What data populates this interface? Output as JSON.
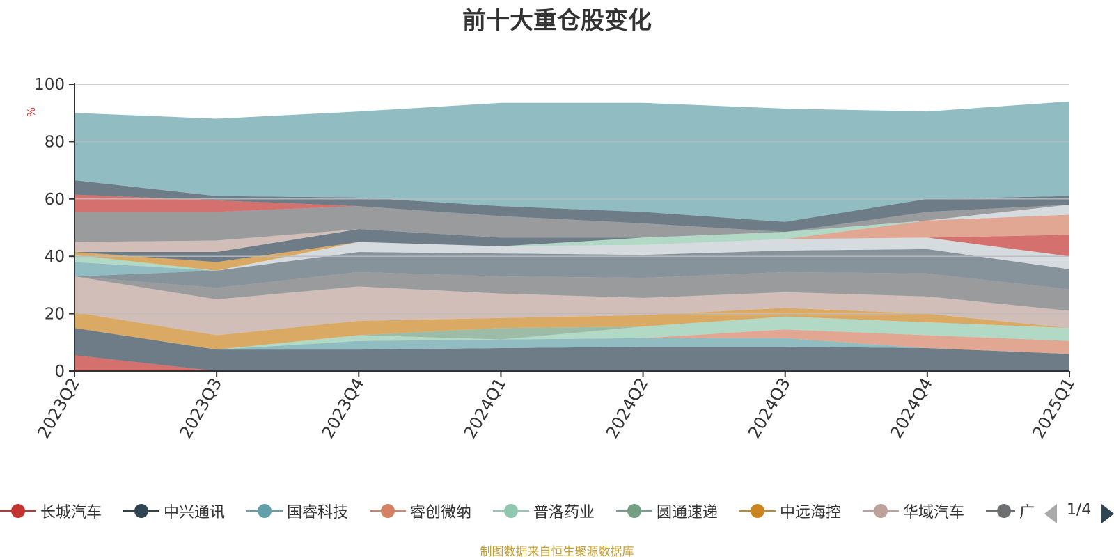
{
  "chart_data": {
    "type": "area",
    "title": "前十大重仓股变化",
    "ylabel": "%",
    "ylim": [
      0,
      100
    ],
    "yticks": [
      0,
      20,
      40,
      60,
      80,
      100
    ],
    "grid": true,
    "stacked": true,
    "categories": [
      "2023Q2",
      "2023Q3",
      "2023Q4",
      "2024Q1",
      "2024Q2",
      "2024Q3",
      "2024Q4",
      "2025Q1"
    ],
    "series": [
      {
        "name": "长城汽车",
        "color": "#c23531",
        "values": [
          5.5,
          0,
          0,
          0,
          0,
          0,
          0,
          0
        ]
      },
      {
        "name": "中兴通讯",
        "color": "#2f4554",
        "values": [
          9.5,
          7.5,
          7.5,
          8,
          8.5,
          8.5,
          8,
          6
        ]
      },
      {
        "name": "国睿科技",
        "color": "#61a0a8",
        "values": [
          0,
          0,
          3,
          3,
          3,
          3,
          0,
          0
        ]
      },
      {
        "name": "睿创微纳",
        "color": "#d48265",
        "values": [
          0,
          0,
          0,
          0,
          0,
          3,
          4.5,
          4.5
        ]
      },
      {
        "name": "普洛药业",
        "color": "#91c7ae",
        "values": [
          0,
          0,
          2,
          0,
          4,
          4.5,
          4.5,
          4.5
        ]
      },
      {
        "name": "圆通速递",
        "color": "#749f83",
        "values": [
          0,
          0,
          0,
          4,
          0,
          0,
          0,
          0
        ]
      },
      {
        "name": "中远海控",
        "color": "#ca8622",
        "values": [
          5.5,
          5,
          5,
          3.5,
          4,
          3,
          3,
          0
        ]
      },
      {
        "name": "华域汽车",
        "color": "#bda29a",
        "values": [
          12.5,
          12.5,
          12,
          8.5,
          6,
          5.5,
          6,
          6
        ]
      },
      {
        "name": "",
        "color": "#6e7074",
        "values": [
          0,
          4,
          5,
          6,
          7,
          7,
          8,
          7.5
        ]
      },
      {
        "name": "",
        "color": "#546570",
        "values": [
          0,
          6,
          7,
          8,
          8,
          7.5,
          8.5,
          7
        ]
      },
      {
        "name": "",
        "color": "#c4ccd3",
        "values": [
          0,
          0,
          3.5,
          2.5,
          3.5,
          4,
          4,
          4.5
        ]
      },
      {
        "name": "",
        "color": "#c23531",
        "values": [
          0,
          0,
          0,
          0,
          0,
          0,
          0,
          7.5
        ]
      },
      {
        "name": "",
        "color": "#61a0a8",
        "values": [
          5,
          0,
          0,
          0,
          0,
          0,
          0,
          0
        ]
      },
      {
        "name": "",
        "color": "#d48265",
        "values": [
          0,
          0,
          0,
          0,
          0,
          0,
          6,
          7
        ]
      },
      {
        "name": "",
        "color": "#91c7ae",
        "values": [
          2.5,
          0,
          0,
          0,
          2.5,
          2.5,
          0,
          0
        ]
      },
      {
        "name": "",
        "color": "#ca8622",
        "values": [
          1,
          3,
          0,
          0,
          0,
          0,
          0,
          0
        ]
      },
      {
        "name": "",
        "color": "#2f4554",
        "values": [
          0,
          3.5,
          4.5,
          3,
          0,
          0,
          0,
          0
        ]
      },
      {
        "name": "",
        "color": "#bda29a",
        "values": [
          3.5,
          4,
          0,
          0,
          0,
          0,
          0,
          0
        ]
      },
      {
        "name": "",
        "color": "#c4ccd3",
        "values": [
          0,
          0,
          0,
          0,
          0,
          0,
          0,
          3.5
        ]
      },
      {
        "name": "",
        "color": "#6e7074",
        "values": [
          10.5,
          10,
          8,
          7.5,
          5,
          0,
          3,
          0
        ]
      },
      {
        "name": "",
        "color": "#c23531",
        "values": [
          6,
          4,
          0,
          0,
          0,
          0,
          0,
          0
        ]
      },
      {
        "name": "",
        "color": "#2f4554",
        "values": [
          5,
          1.5,
          3,
          3.5,
          4,
          3.5,
          4.5,
          3
        ]
      },
      {
        "name": "",
        "color": "#61a0a8",
        "values": [
          23.5,
          27,
          30,
          36,
          38,
          39.5,
          30.5,
          33
        ]
      }
    ]
  },
  "legend": {
    "items": [
      {
        "label": "长城汽车",
        "color": "#c23531"
      },
      {
        "label": "中兴通讯",
        "color": "#2f4554"
      },
      {
        "label": "国睿科技",
        "color": "#61a0a8"
      },
      {
        "label": "睿创微纳",
        "color": "#d48265"
      },
      {
        "label": "普洛药业",
        "color": "#91c7ae"
      },
      {
        "label": "圆通速递",
        "color": "#749f83"
      },
      {
        "label": "中远海控",
        "color": "#ca8622"
      },
      {
        "label": "华域汽车",
        "color": "#bda29a"
      },
      {
        "label": "广",
        "color": "#6e7074"
      }
    ],
    "page": "1/4"
  },
  "source_note": "制图数据来自恒生聚源数据库"
}
